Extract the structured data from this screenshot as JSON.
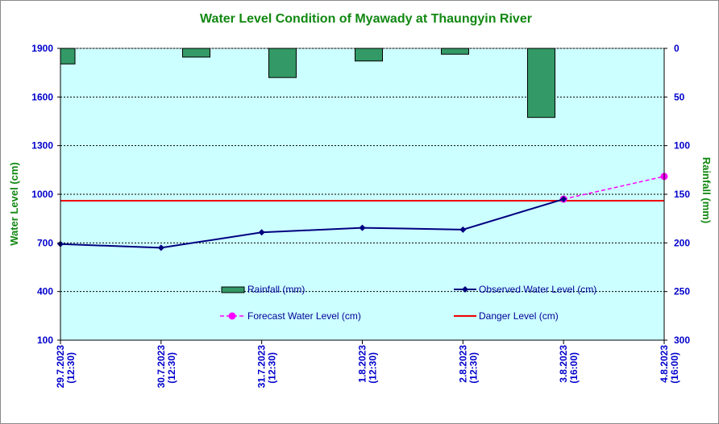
{
  "chart_data": {
    "type": "line",
    "title": "Water Level Condition of  Myawady at Thaungyin River",
    "ylabel": "Water Level (cm)",
    "y2label": "Rainfall (mm)",
    "categories": [
      "29.7.2023 (12:30)",
      "30.7.2023 (12:30)",
      "31.7.2023 (12:30)",
      "1.8.2023 (12:30)",
      "2.8.2023 (12:30)",
      "3.8.2023 (16:00)",
      "4.8.2023 (16:00)"
    ],
    "ylim": [
      100,
      1900
    ],
    "yticks": [
      100,
      400,
      700,
      1000,
      1300,
      1600,
      1900
    ],
    "y2lim": [
      0,
      300
    ],
    "y2ticks": [
      0,
      50,
      100,
      150,
      200,
      250,
      300
    ],
    "y2_reversed": true,
    "grid": true,
    "legend_position": "inside-bottom",
    "series": [
      {
        "name": "Rainfall (mm)",
        "type": "bar",
        "axis": "right",
        "color": "#339966",
        "values": [
          16,
          9,
          30,
          13,
          6,
          71,
          null
        ]
      },
      {
        "name": "Observed Water Level (cm)",
        "type": "line",
        "axis": "left",
        "color": "#000080",
        "marker": "diamond",
        "values": [
          693,
          670,
          765,
          793,
          782,
          970,
          null
        ]
      },
      {
        "name": "Forecast Water Level (cm)",
        "type": "line",
        "axis": "left",
        "color": "#ff00ff",
        "marker": "circle",
        "dashed": true,
        "values": [
          null,
          null,
          null,
          null,
          null,
          970,
          1110
        ]
      },
      {
        "name": "Danger Level (cm)",
        "type": "line",
        "axis": "left",
        "color": "#ee0000",
        "values": [
          960,
          960,
          960,
          960,
          960,
          960,
          960
        ]
      }
    ]
  }
}
